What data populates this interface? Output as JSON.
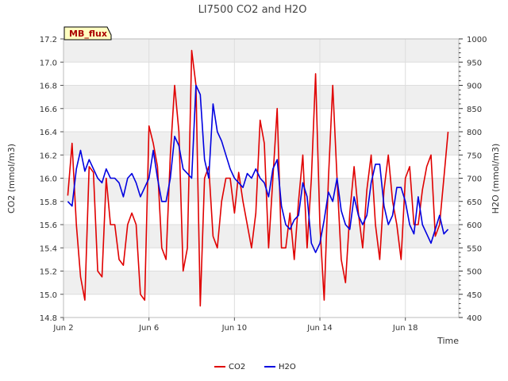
{
  "chart_data": {
    "type": "line",
    "title": "LI7500 CO2 and H2O",
    "badge": "MB_flux",
    "xlabel": "Time",
    "ylabel_left": "CO2 (mmol/m3)",
    "ylabel_right": "H2O (mmol/m3)",
    "x_unit": "day of June",
    "xlim": [
      2,
      20.5
    ],
    "ylim_left": [
      14.8,
      17.2
    ],
    "ylim_right": [
      400,
      1000
    ],
    "x_ticks": [
      {
        "value": 2,
        "label": "Jun 2"
      },
      {
        "value": 6,
        "label": "Jun 6"
      },
      {
        "value": 10,
        "label": "Jun 10"
      },
      {
        "value": 14,
        "label": "Jun 14"
      },
      {
        "value": 18,
        "label": "Jun 18"
      }
    ],
    "y_ticks_left": [
      {
        "value": 14.8,
        "label": "14.8"
      },
      {
        "value": 15.0,
        "label": "15.0"
      },
      {
        "value": 15.2,
        "label": "15.2"
      },
      {
        "value": 15.4,
        "label": "15.4"
      },
      {
        "value": 15.6,
        "label": "15.6"
      },
      {
        "value": 15.8,
        "label": "15.8"
      },
      {
        "value": 16.0,
        "label": "16.0"
      },
      {
        "value": 16.2,
        "label": "16.2"
      },
      {
        "value": 16.4,
        "label": "16.4"
      },
      {
        "value": 16.6,
        "label": "16.6"
      },
      {
        "value": 16.8,
        "label": "16.8"
      },
      {
        "value": 17.0,
        "label": "17.0"
      },
      {
        "value": 17.2,
        "label": "17.2"
      }
    ],
    "y_ticks_right": [
      {
        "value": 400,
        "label": "400"
      },
      {
        "value": 450,
        "label": "450"
      },
      {
        "value": 500,
        "label": "500"
      },
      {
        "value": 550,
        "label": "550"
      },
      {
        "value": 600,
        "label": "600"
      },
      {
        "value": 650,
        "label": "650"
      },
      {
        "value": 700,
        "label": "700"
      },
      {
        "value": 750,
        "label": "750"
      },
      {
        "value": 800,
        "label": "800"
      },
      {
        "value": 850,
        "label": "850"
      },
      {
        "value": 900,
        "label": "900"
      },
      {
        "value": 950,
        "label": "950"
      },
      {
        "value": 1000,
        "label": "1000"
      }
    ],
    "series": [
      {
        "name": "CO2",
        "axis": "left",
        "color": "#e00000",
        "x": [
          2.2,
          2.4,
          2.6,
          2.8,
          3.0,
          3.2,
          3.4,
          3.6,
          3.8,
          4.0,
          4.2,
          4.4,
          4.6,
          4.8,
          5.0,
          5.2,
          5.4,
          5.6,
          5.8,
          6.0,
          6.2,
          6.4,
          6.6,
          6.8,
          7.0,
          7.2,
          7.4,
          7.6,
          7.8,
          8.0,
          8.2,
          8.4,
          8.6,
          8.8,
          9.0,
          9.2,
          9.4,
          9.6,
          9.8,
          10.0,
          10.2,
          10.4,
          10.6,
          10.8,
          11.0,
          11.2,
          11.4,
          11.6,
          11.8,
          12.0,
          12.2,
          12.4,
          12.6,
          12.8,
          13.0,
          13.2,
          13.4,
          13.6,
          13.8,
          14.0,
          14.2,
          14.4,
          14.6,
          14.8,
          15.0,
          15.2,
          15.4,
          15.6,
          15.8,
          16.0,
          16.2,
          16.4,
          16.6,
          16.8,
          17.0,
          17.2,
          17.4,
          17.6,
          17.8,
          18.0,
          18.2,
          18.4,
          18.6,
          18.8,
          19.0,
          19.2,
          19.4,
          19.6,
          19.8,
          20.0
        ],
        "values": [
          15.85,
          16.3,
          15.6,
          15.15,
          14.95,
          16.1,
          16.05,
          15.2,
          15.15,
          16.0,
          15.6,
          15.6,
          15.3,
          15.25,
          15.6,
          15.7,
          15.6,
          15.0,
          14.95,
          16.45,
          16.3,
          16.1,
          15.4,
          15.3,
          16.2,
          16.8,
          16.4,
          15.2,
          15.4,
          17.1,
          16.8,
          14.9,
          16.0,
          16.1,
          15.5,
          15.4,
          15.8,
          16.0,
          16.0,
          15.7,
          16.05,
          15.8,
          15.6,
          15.4,
          15.7,
          16.5,
          16.3,
          15.4,
          16.0,
          16.6,
          15.4,
          15.4,
          15.7,
          15.3,
          15.8,
          16.2,
          15.4,
          16.0,
          16.9,
          15.6,
          14.95,
          16.0,
          16.8,
          16.0,
          15.3,
          15.1,
          15.7,
          16.1,
          15.7,
          15.4,
          15.9,
          16.2,
          15.6,
          15.3,
          15.9,
          16.2,
          15.8,
          15.6,
          15.3,
          16.0,
          16.1,
          15.6,
          15.6,
          15.9,
          16.1,
          16.2,
          15.5,
          15.6,
          16.0,
          16.4
        ]
      },
      {
        "name": "H2O",
        "axis": "right",
        "color": "#0000e0",
        "x": [
          2.2,
          2.4,
          2.6,
          2.8,
          3.0,
          3.2,
          3.4,
          3.6,
          3.8,
          4.0,
          4.2,
          4.4,
          4.6,
          4.8,
          5.0,
          5.2,
          5.4,
          5.6,
          5.8,
          6.0,
          6.2,
          6.4,
          6.6,
          6.8,
          7.0,
          7.2,
          7.4,
          7.6,
          7.8,
          8.0,
          8.2,
          8.4,
          8.6,
          8.8,
          9.0,
          9.2,
          9.4,
          9.6,
          9.8,
          10.0,
          10.2,
          10.4,
          10.6,
          10.8,
          11.0,
          11.2,
          11.4,
          11.6,
          11.8,
          12.0,
          12.2,
          12.4,
          12.6,
          12.8,
          13.0,
          13.2,
          13.4,
          13.6,
          13.8,
          14.0,
          14.2,
          14.4,
          14.6,
          14.8,
          15.0,
          15.2,
          15.4,
          15.6,
          15.8,
          16.0,
          16.2,
          16.4,
          16.6,
          16.8,
          17.0,
          17.2,
          17.4,
          17.6,
          17.8,
          18.0,
          18.2,
          18.4,
          18.6,
          18.8,
          19.0,
          19.2,
          19.4,
          19.6,
          19.8,
          20.0
        ],
        "values": [
          650,
          640,
          720,
          760,
          715,
          740,
          720,
          700,
          690,
          720,
          700,
          700,
          690,
          660,
          700,
          710,
          690,
          660,
          680,
          700,
          760,
          700,
          650,
          650,
          700,
          790,
          770,
          720,
          710,
          700,
          900,
          880,
          740,
          700,
          860,
          800,
          780,
          750,
          720,
          700,
          690,
          680,
          710,
          700,
          720,
          700,
          690,
          660,
          720,
          740,
          640,
          600,
          590,
          610,
          620,
          690,
          660,
          560,
          540,
          560,
          610,
          670,
          650,
          700,
          630,
          600,
          590,
          660,
          620,
          600,
          620,
          690,
          730,
          730,
          640,
          600,
          620,
          680,
          680,
          650,
          600,
          580,
          660,
          600,
          580,
          560,
          590,
          620,
          580,
          590
        ]
      }
    ],
    "legend": [
      {
        "label": "CO2",
        "color": "#e00000"
      },
      {
        "label": "H2O",
        "color": "#0000e0"
      }
    ],
    "legend_position": "bottom-center",
    "grid": true
  }
}
